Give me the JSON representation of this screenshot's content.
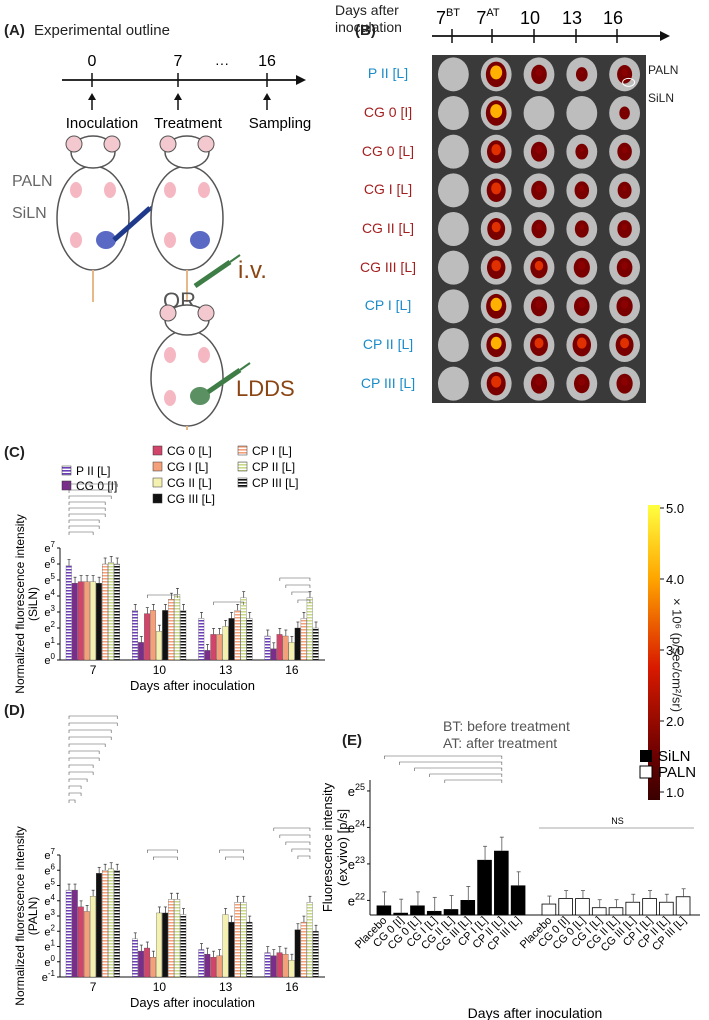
{
  "panel_a": {
    "label": "(A)",
    "title": "Experimental outline",
    "timeline_ticks": [
      "0",
      "7",
      "16"
    ],
    "ellipsis": "···",
    "events": [
      "Inoculation",
      "Treatment",
      "Sampling"
    ],
    "node_labels": [
      "PALN",
      "SiLN"
    ],
    "route_iv": "i.v.",
    "or_text": "OR",
    "route_ldds": "LDDS",
    "colors": {
      "iv": "#8b4513",
      "ldds": "#8b4513",
      "or": "#555555"
    }
  },
  "panel_b": {
    "label": "(B)",
    "axis_title_1": "Days after",
    "axis_title_2": "inoculation",
    "days": [
      {
        "base": "7",
        "sup": "BT"
      },
      {
        "base": "7",
        "sup": "AT"
      },
      {
        "base": "10",
        "sup": ""
      },
      {
        "base": "13",
        "sup": ""
      },
      {
        "base": "16",
        "sup": ""
      }
    ],
    "row_labels": [
      {
        "text": "P II [L]",
        "color": "#1a8cc9"
      },
      {
        "text": "CG 0 [I]",
        "color": "#a31f1f"
      },
      {
        "text": "CG 0 [L]",
        "color": "#a31f1f"
      },
      {
        "text": "CG I [L]",
        "color": "#a31f1f"
      },
      {
        "text": "CG II [L]",
        "color": "#a31f1f"
      },
      {
        "text": "CG III [L]",
        "color": "#a31f1f"
      },
      {
        "text": "CP I [L]",
        "color": "#1a8cc9"
      },
      {
        "text": "CP II [L]",
        "color": "#1a8cc9"
      },
      {
        "text": "CP III [L]",
        "color": "#1a8cc9"
      }
    ],
    "node_annotations": [
      "PALN",
      "SiLN"
    ],
    "colorbar_ticks": [
      "5.0",
      "4.0",
      "3.0",
      "2.0",
      "1.0"
    ],
    "colorbar_label": "× 10⁶ (p/sec/cm²/sr)",
    "footnotes": [
      "BT: before treatment",
      "AT: after treatment"
    ]
  },
  "legend_c": [
    {
      "name": "P II [L]",
      "color": "#6b3fb8",
      "pattern": "hstripe"
    },
    {
      "name": "CG 0 [I]",
      "color": "#7b2d8b",
      "pattern": "solid"
    },
    {
      "name": "CG 0 [L]",
      "color": "#d2456a",
      "pattern": "solid"
    },
    {
      "name": "CG I [L]",
      "color": "#f4a07a",
      "pattern": "solid"
    },
    {
      "name": "CG II [L]",
      "color": "#f4f0b0",
      "pattern": "solid"
    },
    {
      "name": "CG III [L]",
      "color": "#111111",
      "pattern": "solid"
    },
    {
      "name": "CP I [L]",
      "color": "#f4a07a",
      "pattern": "hstripe"
    },
    {
      "name": "CP II [L]",
      "color": "#c9d98a",
      "pattern": "hstripe"
    },
    {
      "name": "CP III [L]",
      "color": "#111111",
      "pattern": "hstripe"
    }
  ],
  "chart_data": [
    {
      "id": "C",
      "label": "(C)",
      "type": "bar",
      "ylabel": "Normalized fluorescence intensity (SiLN)",
      "xlabel": "Days after inoculation",
      "categories": [
        "7",
        "10",
        "13",
        "16"
      ],
      "yticks": [
        "e0",
        "e1",
        "e2",
        "e3",
        "e4",
        "e5",
        "e6",
        "e7"
      ],
      "ylim": [
        0,
        7
      ],
      "series": [
        {
          "name": "P II [L]",
          "values": [
            5.9,
            3.1,
            2.6,
            1.5
          ]
        },
        {
          "name": "CG 0 [I]",
          "values": [
            4.8,
            1.1,
            0.6,
            0.7
          ]
        },
        {
          "name": "CG 0 [L]",
          "values": [
            4.9,
            2.9,
            1.6,
            1.6
          ]
        },
        {
          "name": "CG I [L]",
          "values": [
            4.9,
            3.1,
            1.6,
            1.5
          ]
        },
        {
          "name": "CG II [L]",
          "values": [
            4.9,
            1.8,
            2.1,
            1.1
          ]
        },
        {
          "name": "CG III [L]",
          "values": [
            4.8,
            3.1,
            2.6,
            2.0
          ]
        },
        {
          "name": "CP I [L]",
          "values": [
            6.0,
            3.8,
            3.1,
            2.6
          ]
        },
        {
          "name": "CP II [L]",
          "values": [
            6.1,
            4.1,
            3.9,
            3.9
          ]
        },
        {
          "name": "CP III [L]",
          "values": [
            6.0,
            3.1,
            2.6,
            2.0
          ]
        }
      ]
    },
    {
      "id": "D",
      "label": "(D)",
      "type": "bar",
      "ylabel": "Normalized fluorescence intensity (PALN)",
      "xlabel": "Days after inoculation",
      "categories": [
        "7",
        "10",
        "13",
        "16"
      ],
      "yticks": [
        "e-1",
        "e0",
        "e1",
        "e2",
        "e3",
        "e4",
        "e5",
        "e6",
        "e7"
      ],
      "ylim": [
        -1,
        7
      ],
      "series": [
        {
          "name": "P II [L]",
          "values": [
            4.7,
            1.5,
            0.8,
            0.6
          ]
        },
        {
          "name": "CG 0 [I]",
          "values": [
            4.7,
            0.7,
            0.5,
            0.4
          ]
        },
        {
          "name": "CG 0 [L]",
          "values": [
            3.6,
            0.9,
            0.3,
            0.6
          ]
        },
        {
          "name": "CG I [L]",
          "values": [
            3.3,
            0.3,
            0.4,
            0.5
          ]
        },
        {
          "name": "CG II [L]",
          "values": [
            4.3,
            3.2,
            3.1,
            0.1
          ]
        },
        {
          "name": "CG III [L]",
          "values": [
            5.8,
            3.2,
            2.6,
            2.1
          ]
        },
        {
          "name": "CP I [L]",
          "values": [
            6.0,
            4.1,
            3.9,
            2.6
          ]
        },
        {
          "name": "CP II [L]",
          "values": [
            6.1,
            4.1,
            3.9,
            3.9
          ]
        },
        {
          "name": "CP III [L]",
          "values": [
            6.0,
            3.1,
            2.6,
            2.0
          ]
        }
      ]
    },
    {
      "id": "E",
      "label": "(E)",
      "type": "bar",
      "ylabel": "Fluorescence intensity (ex vivo) [p/s]",
      "xlabel": "Days after inoculation",
      "categories": [
        "Placebo",
        "CG 0 [I]",
        "CG 0 [L]",
        "CG I [L]",
        "CG II [L]",
        "CG III [L]",
        "CP I [L]",
        "CP II [L]",
        "CP III [L]"
      ],
      "yticks": [
        "e22",
        "e23",
        "e24",
        "e25"
      ],
      "ylim": [
        21.6,
        25.3
      ],
      "series": [
        {
          "name": "SiLN",
          "values": [
            21.85,
            21.65,
            21.85,
            21.7,
            21.75,
            22.0,
            23.1,
            23.35,
            22.4
          ]
        },
        {
          "name": "PALN",
          "values": [
            21.9,
            22.05,
            22.05,
            21.8,
            21.8,
            21.95,
            22.05,
            21.95,
            22.1
          ]
        }
      ],
      "annotation": "NS"
    }
  ]
}
